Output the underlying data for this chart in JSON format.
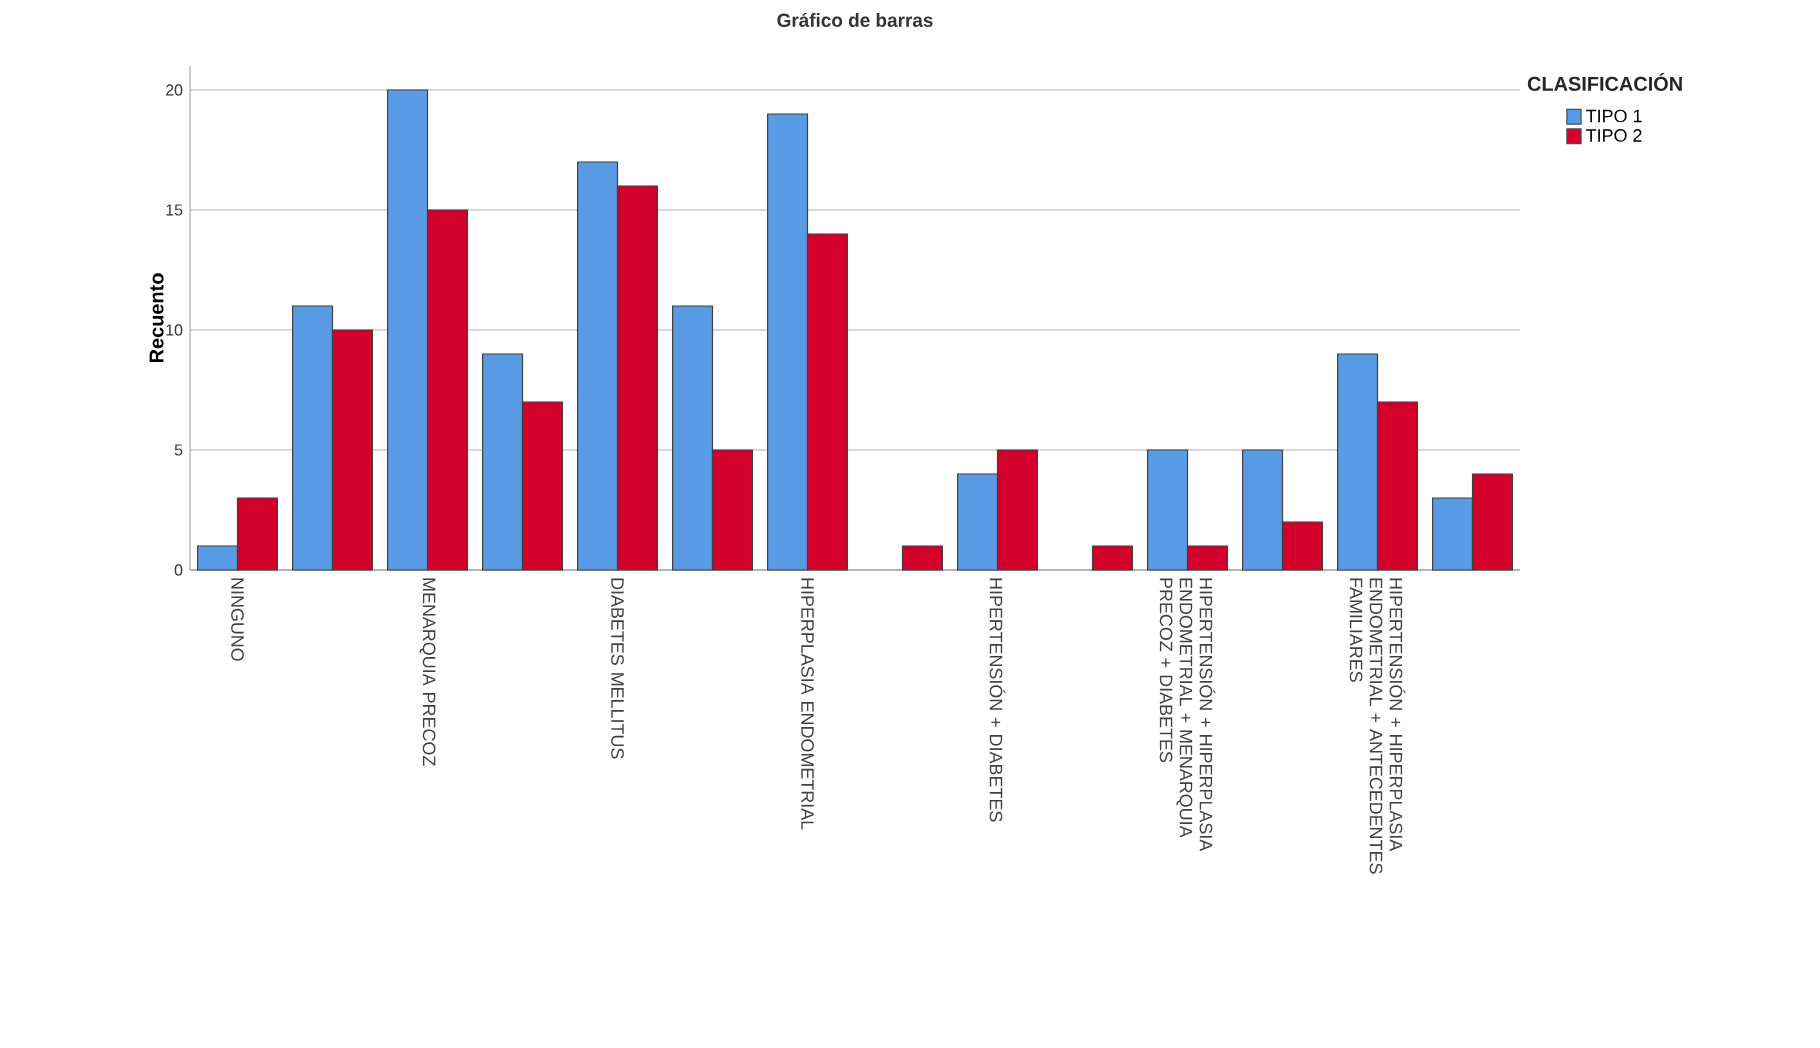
{
  "chart_data": {
    "type": "bar",
    "title": "Gráfico de barras",
    "ylabel": "Recuento",
    "legend_title": "CLASIFICACIÓN",
    "categories": [
      "NINGUNO",
      null,
      "MENARQUIA PRECOZ",
      null,
      "DIABETES MELLITUS",
      null,
      "HIPERPLASIA ENDOMETRIAL",
      null,
      "HIPERTENSIÓN + DIABETES",
      null,
      "HIPERTENSIÓN + HIPERPLASIA ENDOMETRIAL + MENARQUIA PRECOZ + DIABETES",
      null,
      "HIPERTENSIÓN + HIPERPLASIA ENDOMETRIAL + ANTECEDENTES FAMILIARES",
      null
    ],
    "series": [
      {
        "name": "TIPO 1",
        "color": "#5a9be6",
        "values": [
          1,
          11,
          20,
          9,
          17,
          11,
          19,
          null,
          4,
          null,
          5,
          5,
          9,
          3
        ]
      },
      {
        "name": "TIPO 2",
        "color": "#d4002c",
        "values": [
          3,
          10,
          15,
          7,
          16,
          5,
          14,
          1,
          5,
          1,
          1,
          2,
          7,
          4
        ]
      }
    ],
    "ylim": [
      0,
      21
    ],
    "yticks": [
      0,
      5,
      10,
      15,
      20
    ],
    "grid": "y",
    "legend": "top right"
  }
}
